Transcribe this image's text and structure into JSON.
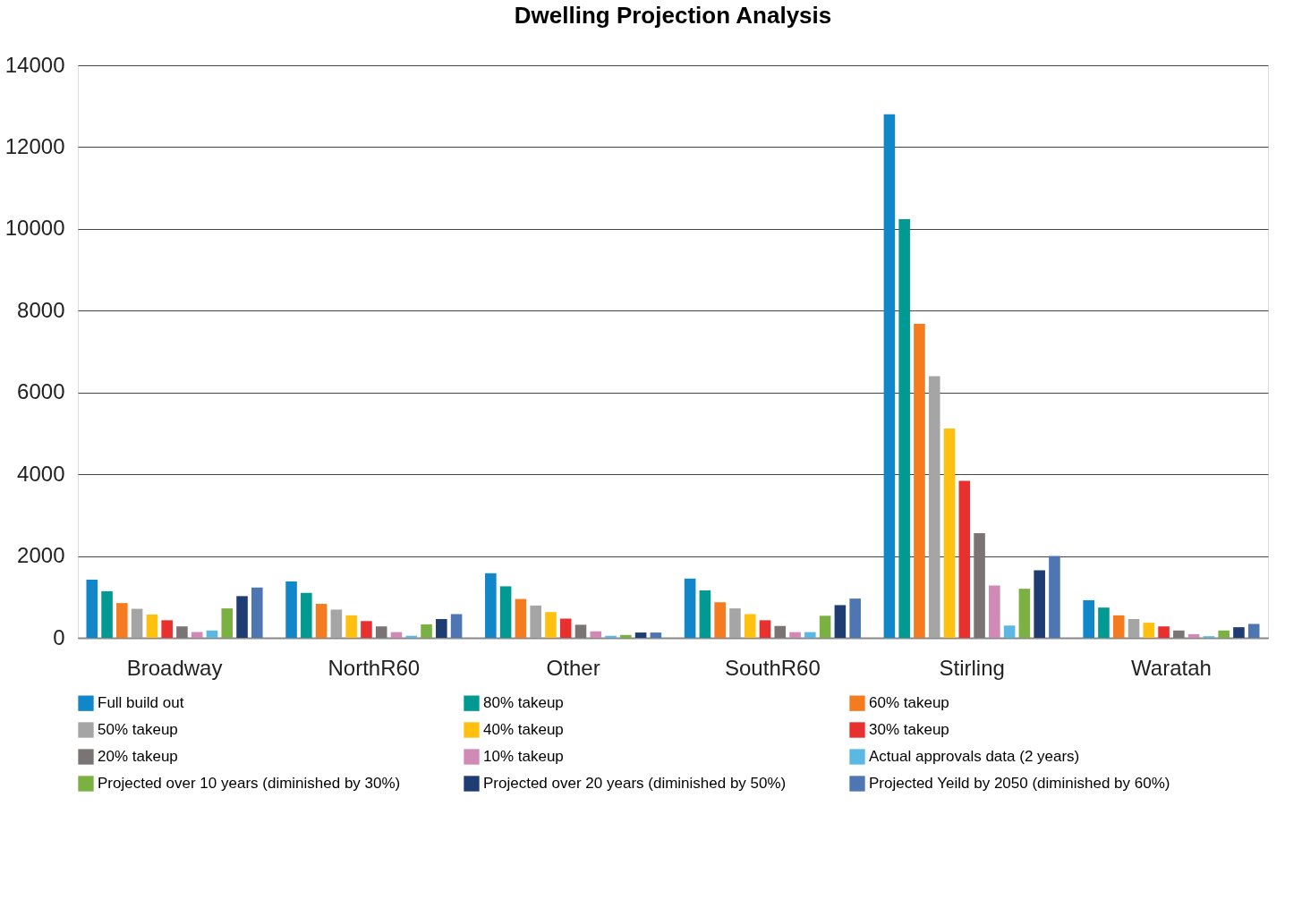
{
  "chart_data": {
    "type": "bar",
    "title": "Dwelling Projection Analysis",
    "categories": [
      "Broadway",
      "NorthR60",
      "Other",
      "SouthR60",
      "Stirling",
      "Waratah"
    ],
    "series": [
      {
        "name": "Full build out",
        "color": "#1187c9",
        "values": [
          1420,
          1380,
          1580,
          1450,
          12800,
          920
        ]
      },
      {
        "name": "80% takeup",
        "color": "#009a93",
        "values": [
          1140,
          1100,
          1260,
          1160,
          10240,
          740
        ]
      },
      {
        "name": "60% takeup",
        "color": "#f47b20",
        "values": [
          850,
          830,
          950,
          870,
          7680,
          550
        ]
      },
      {
        "name": "50% takeup",
        "color": "#a5a5a5",
        "values": [
          710,
          690,
          790,
          720,
          6400,
          460
        ]
      },
      {
        "name": "40% takeup",
        "color": "#ffc010",
        "values": [
          570,
          550,
          630,
          580,
          5120,
          370
        ]
      },
      {
        "name": "30% takeup",
        "color": "#e8302f",
        "values": [
          430,
          410,
          470,
          430,
          3840,
          280
        ]
      },
      {
        "name": "20% takeup",
        "color": "#7a7574",
        "values": [
          280,
          280,
          320,
          290,
          2560,
          180
        ]
      },
      {
        "name": "10% takeup",
        "color": "#d18ab5",
        "values": [
          140,
          140,
          160,
          140,
          1280,
          90
        ]
      },
      {
        "name": "Actual approvals data (2 years)",
        "color": "#5bb8e2",
        "values": [
          180,
          50,
          50,
          140,
          300,
          40
        ]
      },
      {
        "name": "Projected over 10 years (diminished by 30%)",
        "color": "#7bb042",
        "values": [
          720,
          330,
          70,
          540,
          1200,
          180
        ]
      },
      {
        "name": "Projected over 20 years (diminished by 50%)",
        "color": "#203d73",
        "values": [
          1020,
          460,
          130,
          800,
          1650,
          260
        ]
      },
      {
        "name": "Projected Yeild by 2050 (diminished by 60%)",
        "color": "#4e76b2",
        "values": [
          1230,
          580,
          130,
          960,
          2000,
          340
        ]
      }
    ],
    "ylim": [
      0,
      14000
    ],
    "yticks": [
      0,
      2000,
      4000,
      6000,
      8000,
      10000,
      12000,
      14000
    ],
    "grid": "y",
    "legend": "bottom"
  }
}
